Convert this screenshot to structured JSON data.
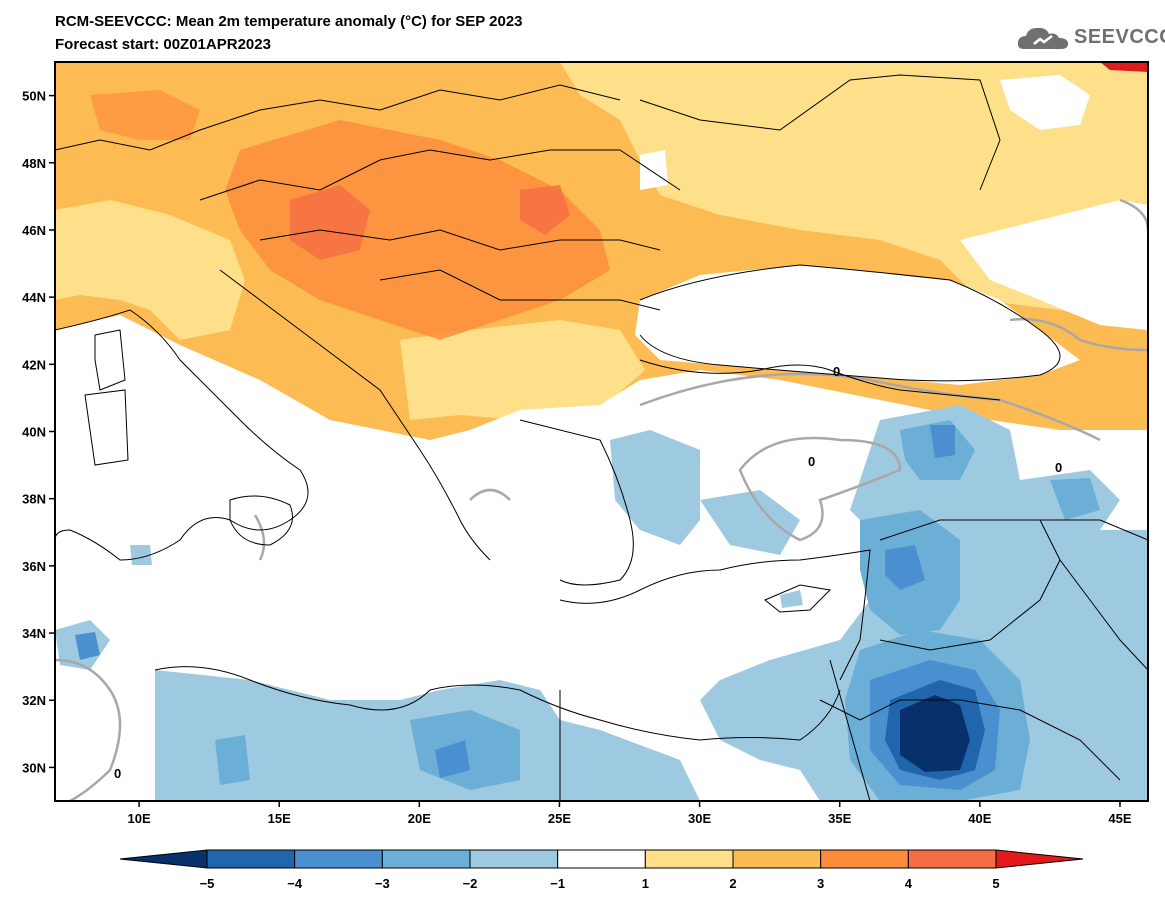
{
  "header": {
    "title": "RCM-SEEVCCC: Mean 2m temperature anomaly (°C) for SEP 2023",
    "subtitle": "Forecast start: 00Z01APR2023"
  },
  "logo": {
    "text": "SEEVCCC"
  },
  "map": {
    "lon_range": [
      7,
      46
    ],
    "lat_range": [
      29,
      51
    ],
    "lat_ticks": [
      "50N",
      "48N",
      "46N",
      "44N",
      "42N",
      "40N",
      "38N",
      "36N",
      "34N",
      "32N",
      "30N"
    ],
    "lon_ticks": [
      "10E",
      "15E",
      "20E",
      "25E",
      "30E",
      "35E",
      "40E",
      "45E"
    ],
    "contour_labels": [
      "0",
      "0",
      "0",
      "0"
    ]
  },
  "colorbar": {
    "labels": [
      "−5",
      "−4",
      "−3",
      "−2",
      "−1",
      "1",
      "2",
      "3",
      "4",
      "5"
    ],
    "colors": [
      "#08306b",
      "#2166ac",
      "#4a8fcf",
      "#6baed6",
      "#9ecae1",
      "#ffffff",
      "#fee08b",
      "#fdbb54",
      "#fd8d3c",
      "#f46d43",
      "#e31a1c"
    ]
  }
}
